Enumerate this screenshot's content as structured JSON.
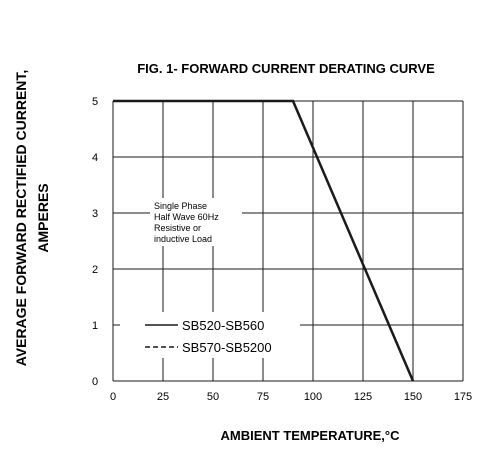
{
  "chart_data": {
    "type": "line",
    "title": "FIG. 1- FORWARD CURRENT DERATING CURVE",
    "xlabel": "AMBIENT TEMPERATURE,°C",
    "ylabel_line1": "AVERAGE FORWARD RECTIFIED CURRENT,",
    "ylabel_line2": "AMPERES",
    "xlim": [
      0,
      175
    ],
    "ylim": [
      0,
      5
    ],
    "x_ticks": [
      0,
      25,
      50,
      75,
      100,
      125,
      150,
      175
    ],
    "y_ticks": [
      0,
      1,
      2,
      3,
      4,
      5
    ],
    "grid": true,
    "series": [
      {
        "name": "SB520-SB560",
        "x": [
          0,
          90,
          150
        ],
        "y": [
          5,
          5,
          0
        ]
      }
    ],
    "annotation": [
      "Single Phase",
      "Half Wave 60Hz",
      "Resistive or",
      "inductive Load"
    ],
    "legend": [
      {
        "label": "SB520-SB560",
        "style": "solid"
      },
      {
        "label": "SB570-SB5200",
        "style": "dashed"
      }
    ],
    "colors": {
      "line": "#1a1a1a",
      "grid": "#1a1a1a"
    }
  }
}
